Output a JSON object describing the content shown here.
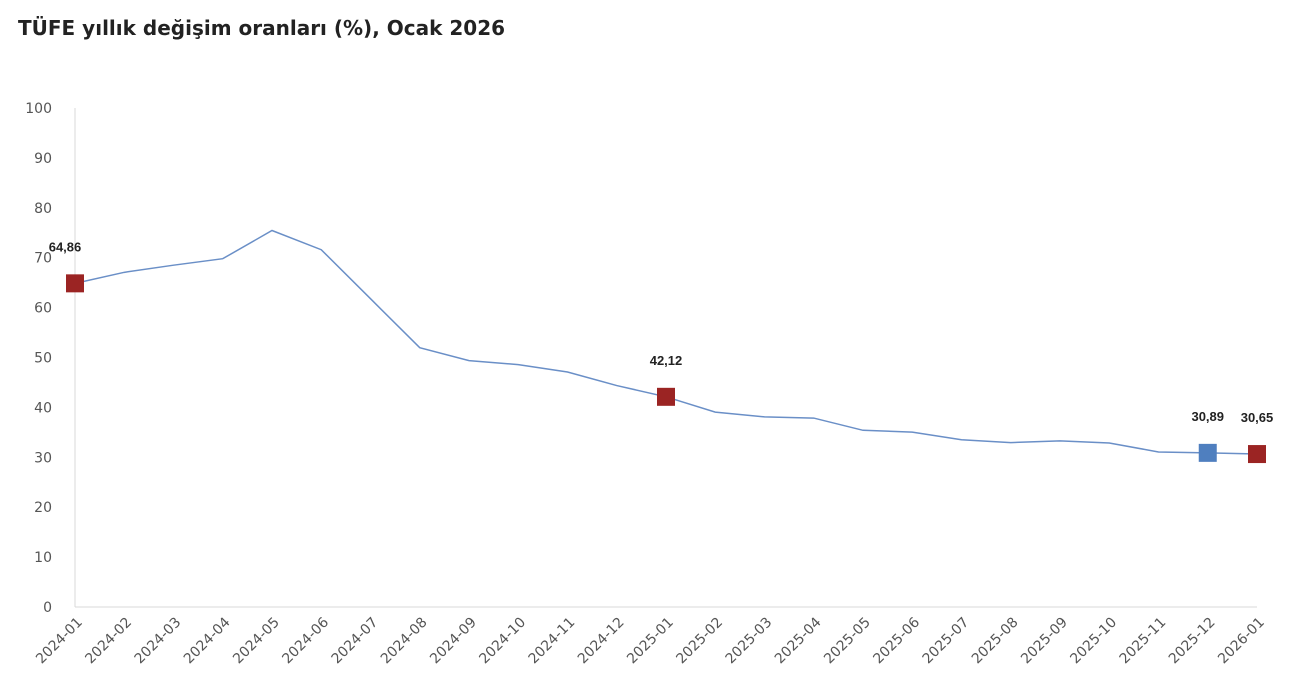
{
  "chart_data": {
    "type": "line",
    "title": "TÜFE yıllık değişim oranları (%), Ocak 2026",
    "xlabel": "",
    "ylabel": "",
    "ylim": [
      0,
      100
    ],
    "yticks": [
      "0",
      "10",
      "20",
      "30",
      "40",
      "50",
      "60",
      "70",
      "80",
      "90",
      "100"
    ],
    "grid": false,
    "categories": [
      "2024-01",
      "2024-02",
      "2024-03",
      "2024-04",
      "2024-05",
      "2024-06",
      "2024-07",
      "2024-08",
      "2024-09",
      "2024-10",
      "2024-11",
      "2024-12",
      "2025-01",
      "2025-02",
      "2025-03",
      "2025-04",
      "2025-05",
      "2025-06",
      "2025-07",
      "2025-08",
      "2025-09",
      "2025-10",
      "2025-11",
      "2025-12",
      "2026-01"
    ],
    "series": [
      {
        "values": [
          64.86,
          67.07,
          68.5,
          69.8,
          75.45,
          71.6,
          61.78,
          51.97,
          49.38,
          48.58,
          47.09,
          44.38,
          42.12,
          39.05,
          38.1,
          37.86,
          35.41,
          35.05,
          33.52,
          32.95,
          33.29,
          32.87,
          31.07,
          30.89,
          30.65
        ],
        "color": "#6a8fc7"
      }
    ],
    "highlights": [
      {
        "index": 0,
        "label": "64,86",
        "color": "#9b2423"
      },
      {
        "index": 12,
        "label": "42,12",
        "color": "#9b2423"
      },
      {
        "index": 23,
        "label": "30,89",
        "color": "#4f7fbf"
      },
      {
        "index": 24,
        "label": "30,65",
        "color": "#9b2423"
      }
    ]
  }
}
